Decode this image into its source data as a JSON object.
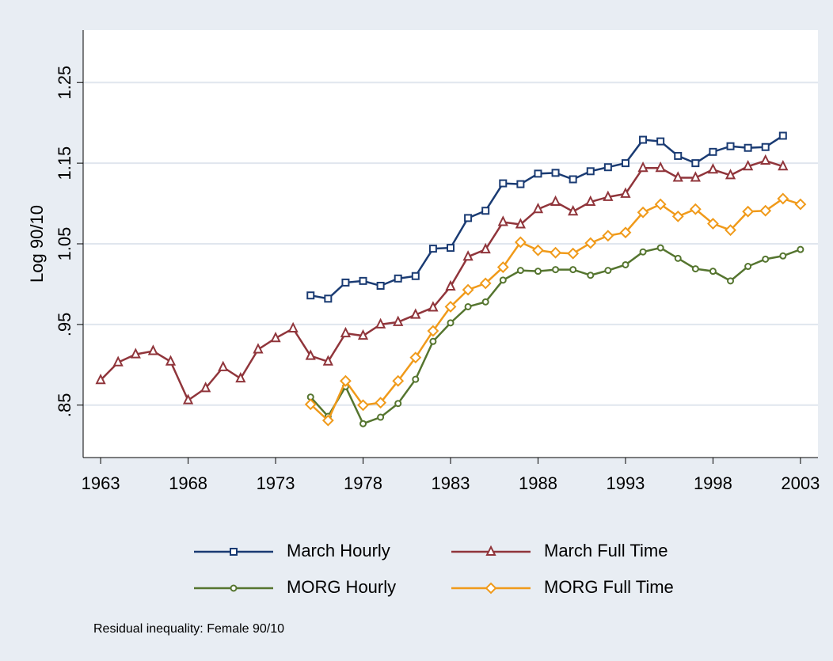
{
  "chart_data": {
    "type": "line",
    "y_label": "Log 90/10",
    "note": "Residual inequality: Female 90/10",
    "x": [
      1963,
      1964,
      1965,
      1966,
      1967,
      1968,
      1969,
      1970,
      1971,
      1972,
      1973,
      1974,
      1975,
      1976,
      1977,
      1978,
      1979,
      1980,
      1981,
      1982,
      1983,
      1984,
      1985,
      1986,
      1987,
      1988,
      1989,
      1990,
      1991,
      1992,
      1993,
      1994,
      1995,
      1996,
      1997,
      1998,
      1999,
      2000,
      2001,
      2002,
      2003
    ],
    "xlim": [
      1962,
      2004
    ],
    "xticks": [
      1963,
      1968,
      1973,
      1978,
      1983,
      1988,
      1993,
      1998,
      2003
    ],
    "ylim": [
      0.785,
      1.315
    ],
    "yticks": [
      {
        "value": 0.85,
        "label": ".85"
      },
      {
        "value": 0.95,
        "label": ".95"
      },
      1.05,
      1.15,
      1.25
    ],
    "grid": true,
    "legend_position": "bottom",
    "series": [
      {
        "name": "March Hourly",
        "color": "#1a3b73",
        "marker": "square",
        "values": [
          null,
          null,
          null,
          null,
          null,
          null,
          null,
          null,
          null,
          null,
          null,
          null,
          0.986,
          0.982,
          1.002,
          1.004,
          0.998,
          1.007,
          1.01,
          1.044,
          1.045,
          1.082,
          1.091,
          1.125,
          1.124,
          1.137,
          1.138,
          1.13,
          1.14,
          1.145,
          1.15,
          1.179,
          1.177,
          1.159,
          1.15,
          1.164,
          1.171,
          1.169,
          1.17,
          1.184,
          null
        ]
      },
      {
        "name": "March Full Time",
        "color": "#90353b",
        "marker": "triangle",
        "values": [
          0.881,
          0.903,
          0.913,
          0.917,
          0.904,
          0.856,
          0.871,
          0.897,
          0.883,
          0.919,
          0.933,
          0.945,
          0.911,
          0.904,
          0.939,
          0.936,
          0.95,
          0.953,
          0.962,
          0.971,
          0.997,
          1.034,
          1.043,
          1.077,
          1.074,
          1.093,
          1.102,
          1.09,
          1.102,
          1.108,
          1.112,
          1.144,
          1.144,
          1.132,
          1.132,
          1.142,
          1.135,
          1.146,
          1.153,
          1.146,
          null
        ]
      },
      {
        "name": "MORG Hourly",
        "color": "#55752f",
        "marker": "circle",
        "values": [
          null,
          null,
          null,
          null,
          null,
          null,
          null,
          null,
          null,
          null,
          null,
          null,
          0.86,
          0.836,
          0.873,
          0.827,
          0.835,
          0.852,
          0.882,
          0.929,
          0.952,
          0.972,
          0.978,
          1.005,
          1.017,
          1.016,
          1.018,
          1.018,
          1.011,
          1.017,
          1.024,
          1.04,
          1.045,
          1.032,
          1.019,
          1.016,
          1.004,
          1.022,
          1.031,
          1.035,
          1.043
        ]
      },
      {
        "name": "MORG Full Time",
        "color": "#f09a1a",
        "marker": "diamond",
        "values": [
          null,
          null,
          null,
          null,
          null,
          null,
          null,
          null,
          null,
          null,
          null,
          null,
          0.851,
          0.831,
          0.88,
          0.85,
          0.853,
          0.88,
          0.909,
          0.942,
          0.972,
          0.993,
          1.001,
          1.021,
          1.052,
          1.042,
          1.039,
          1.038,
          1.051,
          1.06,
          1.064,
          1.089,
          1.099,
          1.084,
          1.093,
          1.075,
          1.067,
          1.09,
          1.091,
          1.106,
          1.099
        ]
      }
    ]
  }
}
